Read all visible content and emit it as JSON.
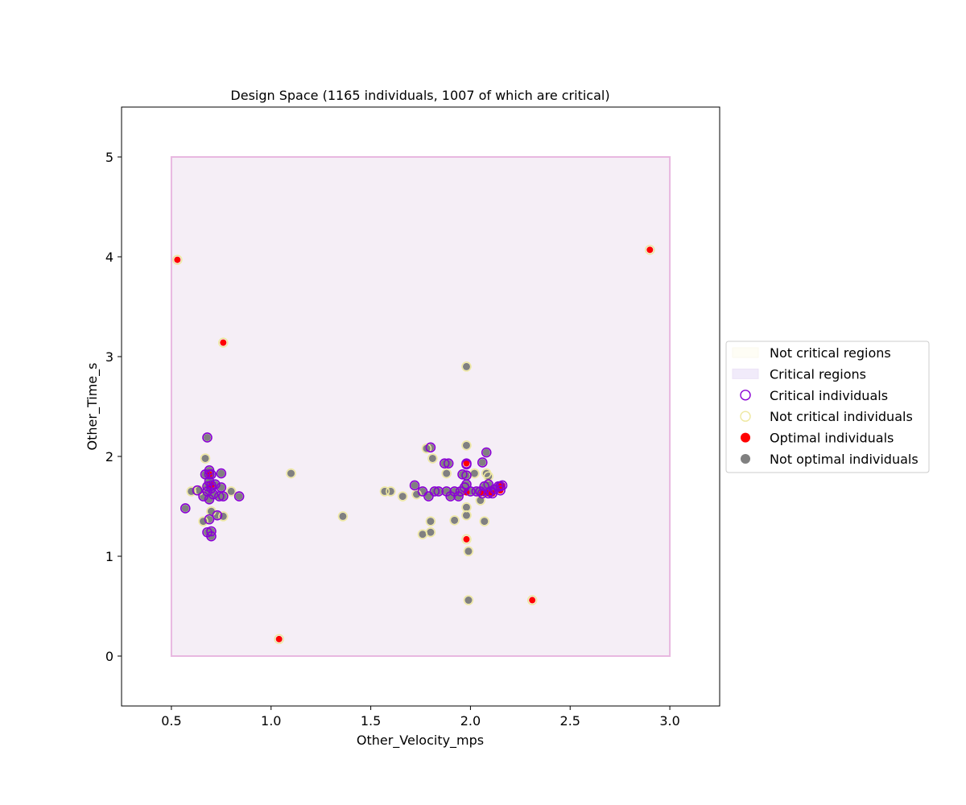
{
  "chart_data": {
    "type": "scatter",
    "title": "Design Space (1165 individuals, 1007 of which are critical)",
    "xlabel": "Other_Velocity_mps",
    "ylabel": "Other_Time_s",
    "xlim": [
      0.25,
      3.25
    ],
    "ylim": [
      -0.5,
      5.5
    ],
    "xticks": [
      0.5,
      1.0,
      1.5,
      2.0,
      2.5,
      3.0
    ],
    "xtick_labels": [
      "0.5",
      "1.0",
      "1.5",
      "2.0",
      "2.5",
      "3.0"
    ],
    "yticks": [
      0,
      1,
      2,
      3,
      4,
      5
    ],
    "ytick_labels": [
      "0",
      "1",
      "2",
      "3",
      "4",
      "5"
    ],
    "grid": false,
    "legend_placement": "right-outside",
    "colors": {
      "critical_region_fill": "#f5eef6",
      "critical_region_edge": "#e8b8e0",
      "not_critical_region_fill": "#fefdf5",
      "critical_edge": "#8a00d4",
      "not_critical_edge": "#eee8a0",
      "optimal_fill": "#ff0000",
      "not_optimal_fill": "#808080"
    },
    "regions": [
      {
        "type": "critical",
        "x": [
          0.5,
          3.0
        ],
        "y": [
          0,
          5
        ]
      }
    ],
    "legend": [
      {
        "label": "Not critical regions",
        "symbol": "patch-notcritical"
      },
      {
        "label": "Critical regions",
        "symbol": "patch-critical"
      },
      {
        "label": "Critical individuals",
        "symbol": "circle-critical"
      },
      {
        "label": "Not critical individuals",
        "symbol": "circle-notcritical"
      },
      {
        "label": "Optimal individuals",
        "symbol": "dot-optimal"
      },
      {
        "label": "Not optimal individuals",
        "symbol": "dot-notoptimal"
      }
    ],
    "series": [
      {
        "name": "Not critical individuals",
        "points": [
          [
            0.6,
            1.65
          ],
          [
            0.64,
            1.66
          ],
          [
            0.66,
            1.35
          ],
          [
            0.67,
            1.98
          ],
          [
            0.7,
            1.45
          ],
          [
            0.76,
            1.4
          ],
          [
            0.8,
            1.65
          ],
          [
            1.1,
            1.83
          ],
          [
            1.36,
            1.4
          ],
          [
            1.57,
            1.65
          ],
          [
            1.6,
            1.65
          ],
          [
            1.66,
            1.6
          ],
          [
            1.73,
            1.62
          ],
          [
            1.76,
            1.22
          ],
          [
            1.78,
            2.08
          ],
          [
            1.8,
            1.35
          ],
          [
            1.8,
            1.24
          ],
          [
            1.81,
            1.98
          ],
          [
            1.88,
            1.83
          ],
          [
            1.92,
            1.36
          ],
          [
            1.98,
            2.9
          ],
          [
            1.98,
            2.11
          ],
          [
            1.98,
            1.49
          ],
          [
            1.98,
            1.41
          ],
          [
            1.99,
            1.05
          ],
          [
            1.99,
            0.56
          ],
          [
            2.02,
            1.83
          ],
          [
            2.05,
            1.56
          ],
          [
            2.07,
            1.35
          ],
          [
            2.08,
            1.83
          ],
          [
            2.09,
            1.8
          ],
          [
            0.53,
            3.97
          ],
          [
            0.76,
            3.14
          ],
          [
            1.04,
            0.17
          ],
          [
            2.31,
            0.56
          ],
          [
            2.9,
            4.07
          ],
          [
            1.98,
            1.17
          ]
        ]
      },
      {
        "name": "Critical individuals",
        "points": [
          [
            0.57,
            1.48
          ],
          [
            0.63,
            1.66
          ],
          [
            0.66,
            1.6
          ],
          [
            0.67,
            1.82
          ],
          [
            0.68,
            1.7
          ],
          [
            0.68,
            1.65
          ],
          [
            0.68,
            1.24
          ],
          [
            0.68,
            2.19
          ],
          [
            0.69,
            1.86
          ],
          [
            0.69,
            1.75
          ],
          [
            0.69,
            1.57
          ],
          [
            0.69,
            1.37
          ],
          [
            0.7,
            1.82
          ],
          [
            0.7,
            1.68
          ],
          [
            0.7,
            1.25
          ],
          [
            0.7,
            1.2
          ],
          [
            0.71,
            1.62
          ],
          [
            0.72,
            1.72
          ],
          [
            0.73,
            1.41
          ],
          [
            0.74,
            1.6
          ],
          [
            0.75,
            1.83
          ],
          [
            0.75,
            1.69
          ],
          [
            0.76,
            1.6
          ],
          [
            0.84,
            1.6
          ],
          [
            1.72,
            1.71
          ],
          [
            1.76,
            1.65
          ],
          [
            1.79,
            1.6
          ],
          [
            1.8,
            2.09
          ],
          [
            1.82,
            1.65
          ],
          [
            1.84,
            1.65
          ],
          [
            1.87,
            1.93
          ],
          [
            1.88,
            1.65
          ],
          [
            1.89,
            1.93
          ],
          [
            1.9,
            1.6
          ],
          [
            1.92,
            1.65
          ],
          [
            1.94,
            1.6
          ],
          [
            1.95,
            1.65
          ],
          [
            1.96,
            1.82
          ],
          [
            1.97,
            1.69
          ],
          [
            1.98,
            1.81
          ],
          [
            1.98,
            1.72
          ],
          [
            1.98,
            1.92
          ],
          [
            2.0,
            1.65
          ],
          [
            2.03,
            1.65
          ],
          [
            2.05,
            1.65
          ],
          [
            2.06,
            1.94
          ],
          [
            2.07,
            1.7
          ],
          [
            2.08,
            2.04
          ],
          [
            2.09,
            1.72
          ],
          [
            2.1,
            1.65
          ],
          [
            2.12,
            1.67
          ],
          [
            2.14,
            1.7
          ],
          [
            0.69,
            1.82
          ],
          [
            0.7,
            1.71
          ],
          [
            1.98,
            1.93
          ],
          [
            2.06,
            1.63
          ],
          [
            2.09,
            1.63
          ],
          [
            2.11,
            1.63
          ],
          [
            2.15,
            1.7
          ],
          [
            2.16,
            1.71
          ],
          [
            2.15,
            1.66
          ]
        ]
      },
      {
        "name": "Optimal individuals",
        "points": [
          [
            0.53,
            3.97
          ],
          [
            0.76,
            3.14
          ],
          [
            1.04,
            0.17
          ],
          [
            2.31,
            0.56
          ],
          [
            2.9,
            4.07
          ],
          [
            1.98,
            1.17
          ],
          [
            0.69,
            1.82
          ],
          [
            0.7,
            1.71
          ],
          [
            1.98,
            1.93
          ],
          [
            1.98,
            1.64
          ],
          [
            2.06,
            1.63
          ],
          [
            2.09,
            1.63
          ],
          [
            2.11,
            1.63
          ],
          [
            2.15,
            1.7
          ],
          [
            2.16,
            1.71
          ],
          [
            2.15,
            1.66
          ]
        ]
      },
      {
        "name": "Not optimal individuals",
        "points": [
          [
            0.57,
            1.48
          ],
          [
            0.6,
            1.65
          ],
          [
            0.63,
            1.66
          ],
          [
            0.64,
            1.66
          ],
          [
            0.66,
            1.35
          ],
          [
            0.66,
            1.6
          ],
          [
            0.67,
            1.98
          ],
          [
            0.67,
            1.82
          ],
          [
            0.68,
            1.7
          ],
          [
            0.68,
            1.65
          ],
          [
            0.68,
            1.24
          ],
          [
            0.68,
            2.19
          ],
          [
            0.69,
            1.86
          ],
          [
            0.69,
            1.75
          ],
          [
            0.69,
            1.57
          ],
          [
            0.69,
            1.37
          ],
          [
            0.7,
            1.82
          ],
          [
            0.7,
            1.68
          ],
          [
            0.7,
            1.45
          ],
          [
            0.7,
            1.25
          ],
          [
            0.7,
            1.2
          ],
          [
            0.71,
            1.62
          ],
          [
            0.72,
            1.72
          ],
          [
            0.73,
            1.41
          ],
          [
            0.74,
            1.6
          ],
          [
            0.75,
            1.83
          ],
          [
            0.75,
            1.69
          ],
          [
            0.76,
            1.6
          ],
          [
            0.76,
            1.4
          ],
          [
            0.8,
            1.65
          ],
          [
            0.84,
            1.6
          ],
          [
            1.1,
            1.83
          ],
          [
            1.36,
            1.4
          ],
          [
            1.57,
            1.65
          ],
          [
            1.6,
            1.65
          ],
          [
            1.66,
            1.6
          ],
          [
            1.72,
            1.71
          ],
          [
            1.73,
            1.62
          ],
          [
            1.76,
            1.65
          ],
          [
            1.76,
            1.22
          ],
          [
            1.78,
            2.08
          ],
          [
            1.79,
            1.6
          ],
          [
            1.8,
            2.09
          ],
          [
            1.8,
            1.35
          ],
          [
            1.8,
            1.24
          ],
          [
            1.81,
            1.98
          ],
          [
            1.82,
            1.65
          ],
          [
            1.84,
            1.65
          ],
          [
            1.87,
            1.93
          ],
          [
            1.88,
            1.83
          ],
          [
            1.88,
            1.65
          ],
          [
            1.89,
            1.93
          ],
          [
            1.9,
            1.6
          ],
          [
            1.92,
            1.65
          ],
          [
            1.92,
            1.36
          ],
          [
            1.94,
            1.6
          ],
          [
            1.95,
            1.65
          ],
          [
            1.96,
            1.82
          ],
          [
            1.97,
            1.69
          ],
          [
            1.98,
            2.9
          ],
          [
            1.98,
            2.11
          ],
          [
            1.98,
            1.81
          ],
          [
            1.98,
            1.72
          ],
          [
            1.98,
            1.49
          ],
          [
            1.98,
            1.41
          ],
          [
            1.99,
            1.05
          ],
          [
            1.99,
            0.56
          ],
          [
            2.0,
            1.65
          ],
          [
            2.02,
            1.83
          ],
          [
            2.03,
            1.65
          ],
          [
            2.05,
            1.65
          ],
          [
            2.05,
            1.56
          ],
          [
            2.06,
            1.94
          ],
          [
            2.07,
            1.7
          ],
          [
            2.07,
            1.35
          ],
          [
            2.08,
            2.04
          ],
          [
            2.08,
            1.83
          ],
          [
            2.09,
            1.8
          ],
          [
            2.09,
            1.72
          ],
          [
            2.1,
            1.65
          ],
          [
            2.12,
            1.67
          ],
          [
            2.14,
            1.7
          ]
        ]
      }
    ]
  }
}
